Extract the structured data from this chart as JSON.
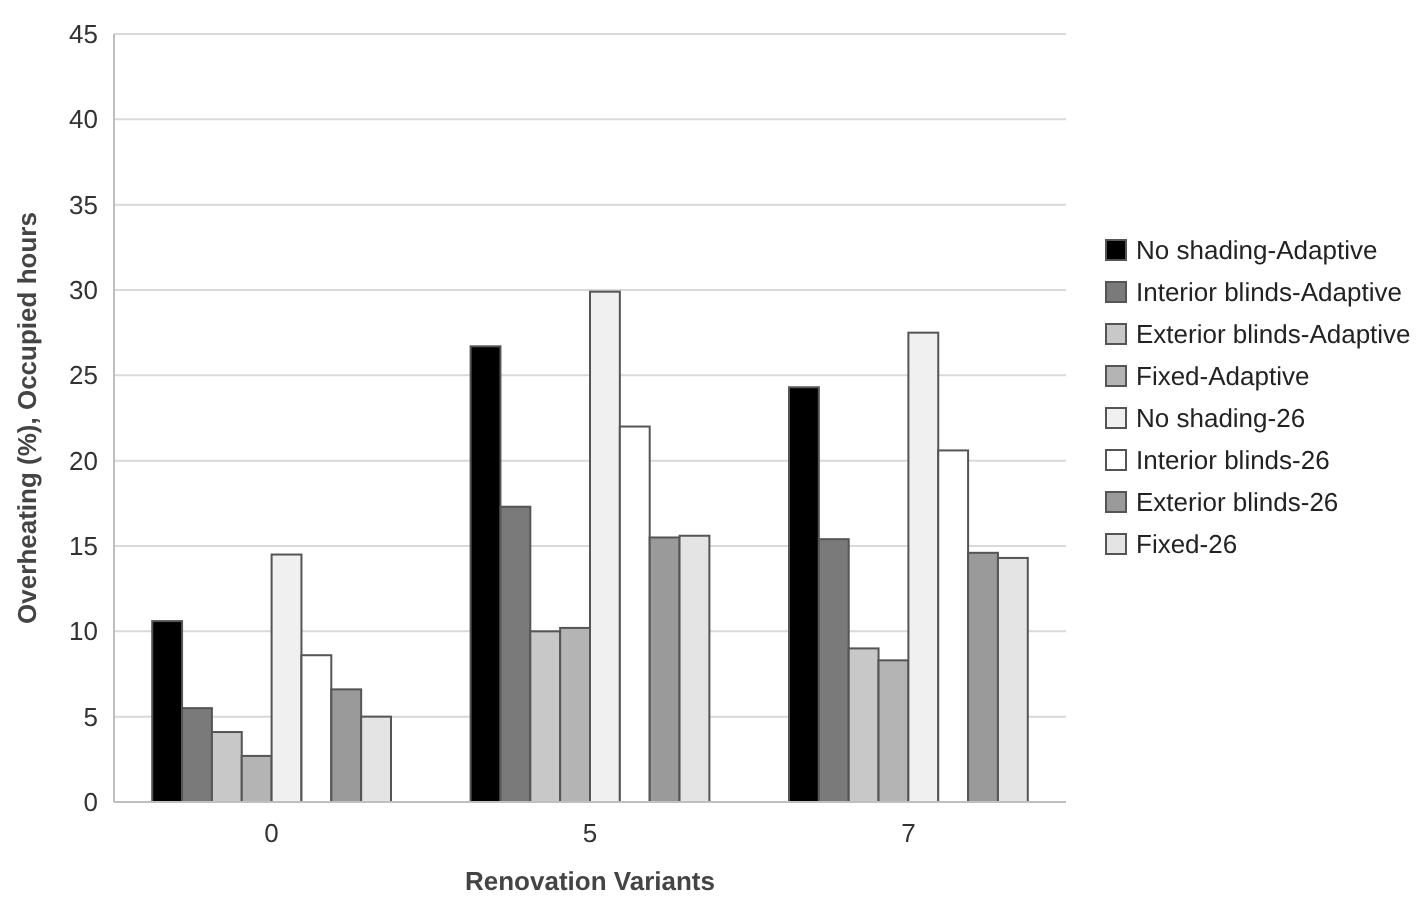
{
  "chart_data": {
    "type": "bar",
    "xlabel": "Renovation Variants",
    "ylabel": "Overheating (%), Occupied hours",
    "categories": [
      "0",
      "5",
      "7"
    ],
    "series": [
      {
        "name": "No shading-Adaptive",
        "color": "#000000",
        "values": [
          10.6,
          26.7,
          24.3
        ]
      },
      {
        "name": "Interior blinds-Adaptive",
        "color": "#7a7a7a",
        "values": [
          5.5,
          17.3,
          15.4
        ]
      },
      {
        "name": "Exterior blinds-Adaptive",
        "color": "#c8c8c8",
        "values": [
          4.1,
          10.0,
          9.0
        ]
      },
      {
        "name": "Fixed-Adaptive",
        "color": "#b4b4b4",
        "values": [
          2.7,
          10.2,
          8.3
        ]
      },
      {
        "name": "No shading-26",
        "color": "#f0f0f0",
        "values": [
          14.5,
          29.9,
          27.5
        ]
      },
      {
        "name": "Interior blinds-26",
        "color": "#ffffff",
        "values": [
          8.6,
          22.0,
          20.6
        ]
      },
      {
        "name": "Exterior blinds-26",
        "color": "#9a9a9a",
        "values": [
          6.6,
          15.5,
          14.6
        ]
      },
      {
        "name": "Fixed-26",
        "color": "#e4e4e4",
        "values": [
          5.0,
          15.6,
          14.3
        ]
      }
    ],
    "ylim": [
      0,
      45
    ],
    "yticks": [
      0,
      5,
      10,
      15,
      20,
      25,
      30,
      35,
      40,
      45
    ],
    "grid": "y",
    "legend": "right"
  }
}
